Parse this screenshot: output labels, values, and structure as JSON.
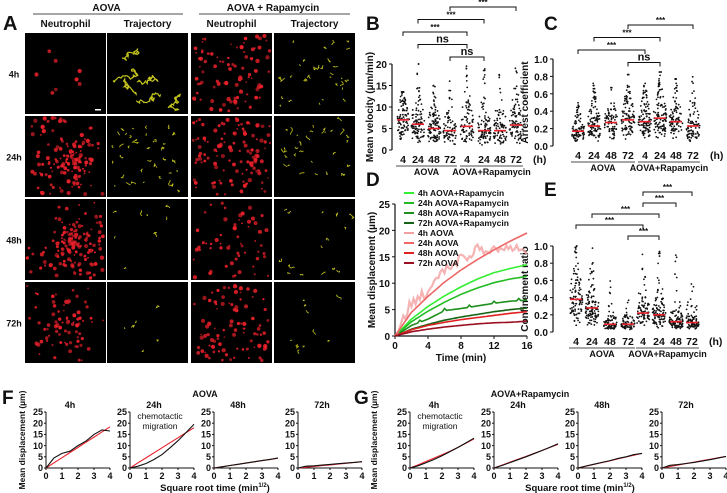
{
  "panel_letters": {
    "A": "A",
    "B": "B",
    "C": "C",
    "D": "D",
    "E": "E",
    "F": "F",
    "G": "G"
  },
  "panel_a": {
    "group_headers": [
      "AOVA",
      "AOVA + Rapamycin"
    ],
    "column_headers": [
      "Neutrophil",
      "Trajectory",
      "Neutrophil",
      "Trajectory"
    ],
    "row_labels": [
      "4h",
      "24h",
      "48h",
      "72h"
    ]
  },
  "colors": {
    "red": "#e8202a",
    "yellow": "#d8d820",
    "median": "#e8202a",
    "green_light": "#33ee33",
    "green": "#22bb22",
    "green_mid": "#1f8f1f",
    "green_dark": "#146414",
    "pink": "#f4a0a0",
    "red_light": "#ee6666",
    "red_mid": "#e02020",
    "red_dark": "#9a1020"
  },
  "chart_data": [
    {
      "id": "B",
      "type": "scatter",
      "ylabel": "Mean velocity (µm/min)",
      "ylim": [
        0,
        20
      ],
      "yticks": [
        "0",
        "5",
        "10",
        "15",
        "20"
      ],
      "categories": [
        "4",
        "24",
        "48",
        "72",
        "4",
        "24",
        "48",
        "72"
      ],
      "unit": "(h)",
      "group_labels": [
        "AOVA",
        "AOVA+Rapamycin"
      ],
      "medians": [
        7,
        6,
        5,
        4.5,
        5.5,
        4.5,
        4.5,
        5.8
      ],
      "max": [
        13.5,
        20,
        15,
        16.5,
        19.5,
        19,
        19.5,
        19
      ],
      "min": [
        2.5,
        1.5,
        2,
        1.2,
        1.5,
        1.2,
        1.2,
        1.2
      ],
      "comparisons": [
        {
          "a": 3,
          "b": 7,
          "label": "***"
        },
        {
          "a": 1,
          "b": 5,
          "label": "***"
        },
        {
          "a": 0,
          "b": 4,
          "label": "***"
        },
        {
          "a": 1,
          "b": 4,
          "label": "ns"
        },
        {
          "a": 3,
          "b": 5,
          "label": "ns"
        }
      ]
    },
    {
      "id": "C",
      "type": "scatter",
      "ylabel": "Arrest coefficient",
      "ylim": [
        0,
        1
      ],
      "yticks": [
        "0.0",
        "0.2",
        "0.4",
        "0.6",
        "0.8",
        "1.0"
      ],
      "categories": [
        "4",
        "24",
        "48",
        "72",
        "4",
        "24",
        "48",
        "72"
      ],
      "unit": "(h)",
      "group_labels": [
        "AOVA",
        "AOVA+Rapamycin"
      ],
      "medians": [
        0.17,
        0.23,
        0.27,
        0.3,
        0.28,
        0.32,
        0.28,
        0.23
      ],
      "max": [
        0.5,
        0.72,
        0.67,
        0.82,
        0.72,
        0.85,
        0.77,
        0.8
      ],
      "min": [
        0,
        0,
        0,
        0,
        0,
        0,
        0,
        0
      ],
      "comparisons": [
        {
          "a": 3,
          "b": 7,
          "label": "***"
        },
        {
          "a": 1,
          "b": 5,
          "label": "***"
        },
        {
          "a": 0,
          "b": 4,
          "label": "***"
        },
        {
          "a": 3,
          "b": 5,
          "label": "ns"
        }
      ]
    },
    {
      "id": "D",
      "type": "line",
      "xlabel": "Time (min)",
      "ylabel": "Mean displacement (µm)",
      "xlim": [
        0,
        16
      ],
      "ylim": [
        0,
        25
      ],
      "xticks": [
        "0",
        "4",
        "8",
        "12",
        "16"
      ],
      "yticks": [
        "0",
        "5",
        "10",
        "15",
        "20",
        "25"
      ],
      "x": [
        0,
        2,
        4,
        6,
        8,
        10,
        12,
        14,
        16
      ],
      "series": [
        {
          "name": "4h AOVA+Rapamycin",
          "color": "#33ee33",
          "values": [
            0,
            3.2,
            5.6,
            7.6,
            9.3,
            10.8,
            12,
            12.8,
            13.5
          ]
        },
        {
          "name": "24h AOVA+Rapamycin",
          "color": "#22bb22",
          "values": [
            0,
            2.7,
            4.7,
            6.4,
            7.9,
            9.1,
            10.1,
            10.8,
            11.3
          ]
        },
        {
          "name": "48h AOVA+Rapamycin",
          "color": "#1f8f1f",
          "values": [
            0,
            2,
            3.2,
            4.8,
            5.2,
            5.7,
            6.2,
            6.6,
            6.8
          ]
        },
        {
          "name": "72h AOVA+Rapamycin",
          "color": "#146414",
          "values": [
            0,
            1.3,
            2.2,
            3,
            3.6,
            4.1,
            4.6,
            5,
            5.3
          ]
        },
        {
          "name": "4h AOVA",
          "color": "#f4a0a0",
          "values": [
            0,
            6.5,
            8.5,
            12.5,
            14.5,
            16.5,
            16.3,
            16.5,
            16
          ]
        },
        {
          "name": "24h AOVA",
          "color": "#ee6666",
          "values": [
            0,
            4.5,
            7.5,
            10.2,
            12.5,
            14.5,
            16.3,
            18,
            19.5
          ]
        },
        {
          "name": "48h AOVA",
          "color": "#e02020",
          "values": [
            0,
            1.2,
            2,
            2.6,
            3.1,
            3.5,
            3.9,
            4.3,
            4.6
          ]
        },
        {
          "name": "72h AOVA",
          "color": "#9a1020",
          "values": [
            0,
            0.8,
            1.3,
            1.7,
            2,
            2.3,
            2.5,
            2.6,
            2.8
          ]
        }
      ]
    },
    {
      "id": "E",
      "type": "scatter",
      "ylabel": "Confinement ratio",
      "ylim": [
        0,
        1
      ],
      "yticks": [
        "0.0",
        "0.2",
        "0.4",
        "0.6",
        "0.8",
        "1.0"
      ],
      "categories": [
        "4",
        "24",
        "48",
        "72",
        "4",
        "24",
        "48",
        "72"
      ],
      "unit": "(h)",
      "group_labels": [
        "AOVA",
        "AOVA+Rapamycin"
      ],
      "medians": [
        0.38,
        0.28,
        0.09,
        0.09,
        0.22,
        0.2,
        0.12,
        0.11
      ],
      "max": [
        1,
        1,
        0.6,
        0.4,
        1,
        1,
        0.95,
        0.9
      ],
      "min": [
        0,
        0,
        0,
        0,
        0,
        0,
        0,
        0
      ],
      "comparisons": [
        {
          "a": 4,
          "b": 7,
          "label": "***"
        },
        {
          "a": 4,
          "b": 6,
          "label": "***"
        },
        {
          "a": 1,
          "b": 5,
          "label": "***"
        },
        {
          "a": 0,
          "b": 4,
          "label": "***"
        },
        {
          "a": 3,
          "b": 5,
          "label": "***"
        }
      ]
    },
    {
      "id": "F",
      "type": "line",
      "title": "AOVA",
      "xlabel": "Square root time (min",
      "xlabel_sup": "1/2",
      "xlabel_end": ")",
      "ylabel": "Mean displacement (µm)",
      "xlim": [
        0,
        4
      ],
      "ylim": [
        0,
        25
      ],
      "xticks": [
        "0",
        "1",
        "2",
        "3",
        "4"
      ],
      "yticks": [
        "0",
        "5",
        "10",
        "15",
        "20",
        "25"
      ],
      "x": [
        0,
        0.5,
        1,
        1.5,
        2,
        2.5,
        3,
        3.5,
        4
      ],
      "panels": [
        {
          "title": "4h",
          "annotation": "",
          "observed": [
            0,
            4.5,
            6.5,
            7.5,
            10,
            12,
            15,
            17,
            16.5
          ],
          "fit": [
            0,
            2.3,
            4.6,
            6.9,
            9.2,
            11.5,
            13.8,
            16.1,
            18.4
          ]
        },
        {
          "title": "24h",
          "annotation": "chemotactic migration",
          "observed": [
            0,
            0.8,
            2,
            3.8,
            6,
            9,
            12.2,
            15.8,
            19.5
          ],
          "fit": [
            0,
            2.3,
            4.5,
            6.8,
            9,
            11.3,
            13.5,
            15.8,
            18
          ]
        },
        {
          "title": "48h",
          "annotation": "",
          "observed": [
            0,
            0.55,
            1.1,
            1.65,
            2.2,
            2.75,
            3.3,
            3.85,
            4.4
          ],
          "fit": [
            0,
            0.55,
            1.1,
            1.65,
            2.2,
            2.75,
            3.3,
            3.85,
            4.4
          ]
        },
        {
          "title": "72h",
          "annotation": "",
          "observed": [
            0,
            0.8,
            1,
            1.3,
            1.6,
            1.9,
            2.2,
            2.5,
            2.8
          ],
          "fit": [
            0,
            0.35,
            0.7,
            1.05,
            1.4,
            1.75,
            2.1,
            2.45,
            2.8
          ]
        }
      ]
    },
    {
      "id": "G",
      "type": "line",
      "title": "AOVA+Rapamycin",
      "xlabel": "Square root time (min",
      "xlabel_sup": "1/2",
      "xlabel_end": ")",
      "ylabel": "Mean displacement (µm)",
      "xlim": [
        0,
        4
      ],
      "ylim": [
        0,
        25
      ],
      "xticks": [
        "0",
        "1",
        "2",
        "3",
        "4"
      ],
      "yticks": [
        "0",
        "5",
        "10",
        "15",
        "20",
        "25"
      ],
      "x": [
        0,
        0.5,
        1,
        1.5,
        2,
        2.5,
        3,
        3.5,
        4
      ],
      "panels": [
        {
          "title": "4h",
          "annotation": "chemotactic migration",
          "observed": [
            0,
            1,
            2.3,
            3.8,
            5.5,
            7.3,
            9.2,
            11.2,
            13.3
          ],
          "fit": [
            0,
            1.4,
            2.9,
            4.4,
            5.9,
            7.5,
            9.2,
            11.1,
            13
          ]
        },
        {
          "title": "24h",
          "annotation": "",
          "observed": [
            0,
            1.1,
            2.4,
            3.7,
            5,
            6.4,
            7.8,
            9.3,
            10.8
          ],
          "fit": [
            0,
            1.3,
            2.6,
            3.9,
            5.2,
            6.5,
            7.8,
            9.2,
            10.6
          ]
        },
        {
          "title": "48h",
          "annotation": "",
          "observed": [
            0,
            0.9,
            1.7,
            2.5,
            3.3,
            4.3,
            5,
            6,
            6.5
          ],
          "fit": [
            0,
            0.8,
            1.6,
            2.4,
            3.2,
            4.1,
            4.9,
            5.7,
            6.5
          ]
        },
        {
          "title": "72h",
          "annotation": "",
          "observed": [
            0,
            1.2,
            1.5,
            2,
            2.5,
            3.1,
            3.7,
            4.4,
            5.2
          ],
          "fit": [
            0,
            0.65,
            1.3,
            1.95,
            2.6,
            3.25,
            3.9,
            4.55,
            5.2
          ]
        }
      ]
    }
  ]
}
